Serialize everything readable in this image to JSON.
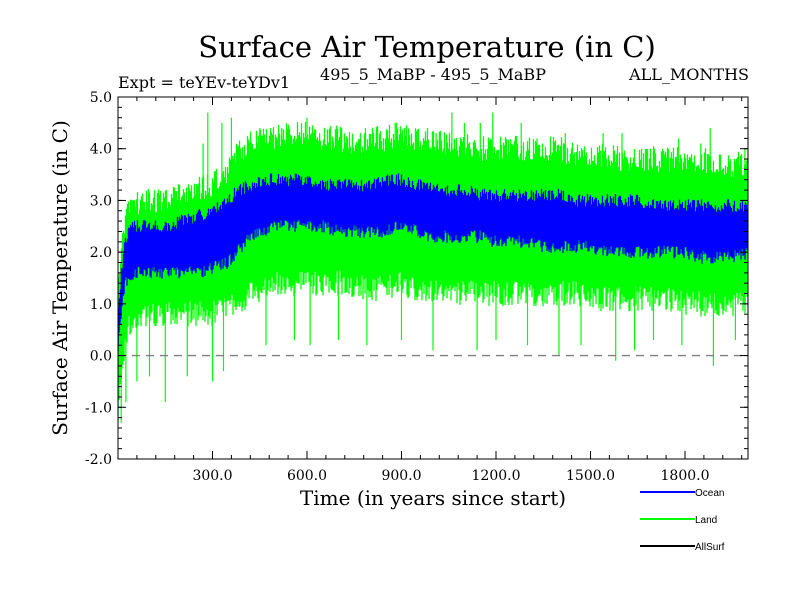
{
  "chart_data": {
    "type": "line",
    "title": "Surface Air Temperature (in C)",
    "subtitle_left": "Expt = teYEv-teYDv1",
    "subtitle_center": "495_5_MaBP - 495_5_MaBP",
    "subtitle_right": "ALL_MONTHS",
    "xlabel": "Time (in years since start)",
    "ylabel": "Surface Air Temperature (in C)",
    "xlim": [
      0,
      2000
    ],
    "ylim": [
      -2.0,
      5.0
    ],
    "xticks": [
      300,
      600,
      900,
      1200,
      1500,
      1800
    ],
    "xtick_labels": [
      "300.0",
      "600.0",
      "900.0",
      "1200.0",
      "1500.0",
      "1800.0"
    ],
    "yticks": [
      -2.0,
      -1.0,
      0.0,
      1.0,
      2.0,
      3.0,
      4.0,
      5.0
    ],
    "ytick_labels": [
      "-2.0",
      "-1.0",
      "0.0",
      "1.0",
      "2.0",
      "3.0",
      "4.0",
      "5.0"
    ],
    "reference_line": {
      "y": 0.0,
      "style": "dashed",
      "color": "#808080"
    },
    "legend_position": "bottom-right",
    "series": [
      {
        "name": "Land",
        "color": "#00ff00",
        "x": [
          0,
          10,
          20,
          30,
          50,
          75,
          100,
          150,
          200,
          250,
          300,
          350,
          380,
          420,
          470,
          500,
          550,
          600,
          650,
          700,
          750,
          800,
          850,
          900,
          950,
          1000,
          1050,
          1100,
          1150,
          1200,
          1250,
          1300,
          1350,
          1400,
          1450,
          1500,
          1550,
          1600,
          1650,
          1700,
          1750,
          1800,
          1850,
          1900,
          1950,
          2000
        ],
        "low": [
          -1.3,
          -0.5,
          0.2,
          0.5,
          0.7,
          0.8,
          0.8,
          0.8,
          0.8,
          0.8,
          0.8,
          0.9,
          1.0,
          1.2,
          1.3,
          1.4,
          1.4,
          1.4,
          1.4,
          1.4,
          1.3,
          1.3,
          1.3,
          1.4,
          1.3,
          1.3,
          1.3,
          1.2,
          1.2,
          1.2,
          1.2,
          1.2,
          1.2,
          1.2,
          1.2,
          1.1,
          1.1,
          1.1,
          1.1,
          1.1,
          1.1,
          1.0,
          1.0,
          1.0,
          1.0,
          1.0
        ],
        "high": [
          1.5,
          2.0,
          2.5,
          2.8,
          2.9,
          3.0,
          3.0,
          3.0,
          3.1,
          3.2,
          3.3,
          3.6,
          3.9,
          4.1,
          4.2,
          4.2,
          4.3,
          4.3,
          4.2,
          4.2,
          4.1,
          4.2,
          4.2,
          4.3,
          4.2,
          4.2,
          4.1,
          4.1,
          4.0,
          4.0,
          4.0,
          4.0,
          4.0,
          4.0,
          3.9,
          3.9,
          3.9,
          3.8,
          3.8,
          3.8,
          3.8,
          3.8,
          3.8,
          3.7,
          3.7,
          3.7
        ],
        "spikes_low": [
          {
            "x": 10,
            "y": -1.3
          },
          {
            "x": 25,
            "y": -0.9
          },
          {
            "x": 60,
            "y": -0.5
          },
          {
            "x": 100,
            "y": -0.4
          },
          {
            "x": 150,
            "y": -0.9
          },
          {
            "x": 220,
            "y": -0.4
          },
          {
            "x": 300,
            "y": -0.5
          },
          {
            "x": 335,
            "y": -0.3
          },
          {
            "x": 470,
            "y": 0.2
          },
          {
            "x": 560,
            "y": 0.3
          },
          {
            "x": 610,
            "y": 0.2
          },
          {
            "x": 700,
            "y": 0.3
          },
          {
            "x": 790,
            "y": 0.2
          },
          {
            "x": 900,
            "y": 0.3
          },
          {
            "x": 1000,
            "y": 0.1
          },
          {
            "x": 1140,
            "y": 0.1
          },
          {
            "x": 1200,
            "y": 0.3
          },
          {
            "x": 1300,
            "y": 0.2
          },
          {
            "x": 1400,
            "y": 0.0
          },
          {
            "x": 1470,
            "y": 0.2
          },
          {
            "x": 1580,
            "y": -0.1
          },
          {
            "x": 1640,
            "y": 0.1
          },
          {
            "x": 1700,
            "y": 0.3
          },
          {
            "x": 1790,
            "y": 0.2
          },
          {
            "x": 1890,
            "y": -0.2
          },
          {
            "x": 1960,
            "y": 0.3
          }
        ],
        "spikes_high": [
          {
            "x": 270,
            "y": 4.1
          },
          {
            "x": 285,
            "y": 4.7
          },
          {
            "x": 330,
            "y": 4.5
          },
          {
            "x": 360,
            "y": 4.6
          },
          {
            "x": 450,
            "y": 4.4
          },
          {
            "x": 520,
            "y": 4.4
          },
          {
            "x": 600,
            "y": 4.6
          },
          {
            "x": 640,
            "y": 4.3
          },
          {
            "x": 710,
            "y": 4.4
          },
          {
            "x": 820,
            "y": 4.3
          },
          {
            "x": 880,
            "y": 4.5
          },
          {
            "x": 1010,
            "y": 4.3
          },
          {
            "x": 1060,
            "y": 4.7
          },
          {
            "x": 1100,
            "y": 4.5
          },
          {
            "x": 1150,
            "y": 4.5
          },
          {
            "x": 1190,
            "y": 4.7
          },
          {
            "x": 1280,
            "y": 4.5
          },
          {
            "x": 1330,
            "y": 4.2
          },
          {
            "x": 1420,
            "y": 4.3
          },
          {
            "x": 1540,
            "y": 4.3
          },
          {
            "x": 1600,
            "y": 4.3
          },
          {
            "x": 1690,
            "y": 4.0
          },
          {
            "x": 1780,
            "y": 4.2
          },
          {
            "x": 1850,
            "y": 4.1
          },
          {
            "x": 1880,
            "y": 4.4
          },
          {
            "x": 1990,
            "y": 4.0
          }
        ]
      },
      {
        "name": "Ocean",
        "color": "#0000ff",
        "x": [
          0,
          10,
          20,
          30,
          50,
          75,
          100,
          150,
          200,
          250,
          300,
          350,
          380,
          420,
          470,
          500,
          550,
          600,
          650,
          700,
          750,
          800,
          850,
          900,
          950,
          1000,
          1050,
          1100,
          1150,
          1200,
          1250,
          1300,
          1350,
          1400,
          1450,
          1500,
          1550,
          1600,
          1650,
          1700,
          1750,
          1800,
          1850,
          1900,
          1950,
          2000
        ],
        "low": [
          0.2,
          0.8,
          1.3,
          1.5,
          1.6,
          1.6,
          1.6,
          1.6,
          1.6,
          1.6,
          1.7,
          1.8,
          2.0,
          2.3,
          2.4,
          2.5,
          2.5,
          2.5,
          2.5,
          2.4,
          2.4,
          2.4,
          2.4,
          2.5,
          2.4,
          2.3,
          2.3,
          2.3,
          2.3,
          2.2,
          2.2,
          2.2,
          2.1,
          2.1,
          2.1,
          2.1,
          2.0,
          2.0,
          2.0,
          2.0,
          2.0,
          2.0,
          1.9,
          1.9,
          1.9,
          2.0
        ],
        "high": [
          1.0,
          1.6,
          2.2,
          2.4,
          2.5,
          2.5,
          2.5,
          2.5,
          2.6,
          2.7,
          2.8,
          3.0,
          3.2,
          3.3,
          3.4,
          3.4,
          3.4,
          3.4,
          3.3,
          3.3,
          3.3,
          3.3,
          3.4,
          3.4,
          3.3,
          3.3,
          3.2,
          3.2,
          3.1,
          3.1,
          3.1,
          3.1,
          3.1,
          3.1,
          3.0,
          3.0,
          3.0,
          3.0,
          3.0,
          2.9,
          2.9,
          2.9,
          2.9,
          2.9,
          2.9,
          2.9
        ]
      },
      {
        "name": "AllSurf",
        "color": "#000000",
        "x": [],
        "y": []
      }
    ],
    "legend": [
      {
        "name": "Ocean",
        "color": "#0000ff"
      },
      {
        "name": "Land",
        "color": "#00ff00"
      },
      {
        "name": "AllSurf",
        "color": "#000000"
      }
    ]
  }
}
